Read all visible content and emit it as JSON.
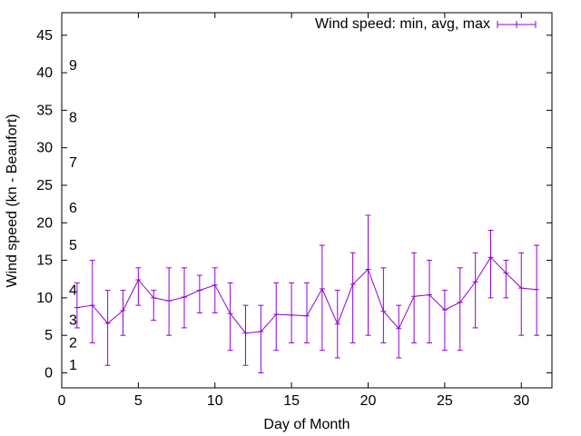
{
  "chart_data": {
    "type": "line",
    "title": "",
    "xlabel": "Day of Month",
    "ylabel": "Wind speed (kn - Beaufort)",
    "xlim": [
      0,
      32
    ],
    "ylim": [
      -2,
      48
    ],
    "x_ticks": [
      0,
      5,
      10,
      15,
      20,
      25,
      30
    ],
    "y_ticks": [
      0,
      5,
      10,
      15,
      20,
      25,
      30,
      35,
      40,
      45
    ],
    "grid": false,
    "legend_position": "top-right",
    "series": [
      {
        "name": "Wind speed: min, avg, max",
        "color": "#9400d3",
        "style": "line-with-errorbars",
        "x": [
          1,
          2,
          3,
          4,
          5,
          6,
          7,
          8,
          9,
          10,
          11,
          12,
          13,
          14,
          15,
          16,
          17,
          18,
          19,
          20,
          21,
          22,
          23,
          24,
          25,
          26,
          27,
          28,
          29,
          30,
          31
        ],
        "avg": [
          8.7,
          9.0,
          6.6,
          8.3,
          12.4,
          10.0,
          9.6,
          10.1,
          11.0,
          11.7,
          7.9,
          5.3,
          5.5,
          7.8,
          7.7,
          7.6,
          11.2,
          6.5,
          11.8,
          13.8,
          8.2,
          5.9,
          10.2,
          10.4,
          8.4,
          9.4,
          12.1,
          15.4,
          13.3,
          11.3,
          11.1
        ],
        "min": [
          6,
          4,
          1,
          5,
          9,
          7,
          5,
          6,
          8,
          8,
          3,
          1,
          0,
          3,
          4,
          4,
          3,
          2,
          4,
          5,
          4,
          2,
          4,
          4,
          3,
          3,
          6,
          10,
          10,
          5,
          5
        ],
        "max": [
          12,
          15,
          11,
          11,
          14,
          11,
          14,
          14,
          13,
          14,
          12,
          9,
          9,
          12,
          12,
          12,
          17,
          11,
          16,
          21,
          14,
          9,
          16,
          15,
          11,
          14,
          16,
          19,
          15,
          16,
          17
        ]
      }
    ],
    "beaufort_labels": [
      {
        "label": "1",
        "y": 1
      },
      {
        "label": "2",
        "y": 4
      },
      {
        "label": "3",
        "y": 7
      },
      {
        "label": "4",
        "y": 11
      },
      {
        "label": "5",
        "y": 17
      },
      {
        "label": "6",
        "y": 22
      },
      {
        "label": "7",
        "y": 28
      },
      {
        "label": "8",
        "y": 34
      },
      {
        "label": "9",
        "y": 41
      }
    ]
  }
}
